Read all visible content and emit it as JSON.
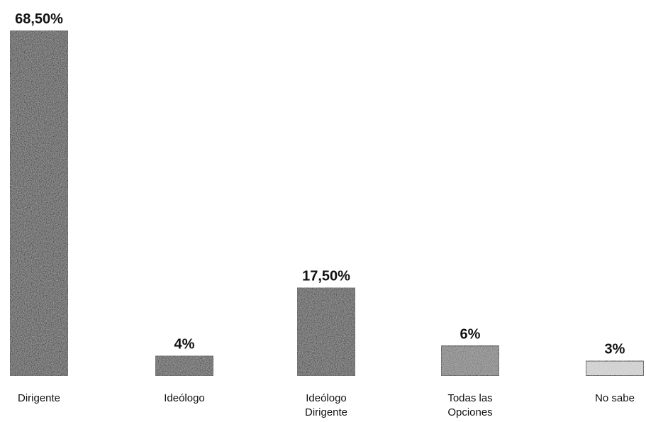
{
  "chart_data": {
    "type": "bar",
    "categories": [
      "Dirigente",
      "Ideólogo",
      "Ideólogo\nDirigente",
      "Todas las\nOpciones",
      "No sabe"
    ],
    "values": [
      68.5,
      4,
      17.5,
      6,
      3
    ],
    "value_labels": [
      "68,50%",
      "4%",
      "17,50%",
      "6%",
      "3%"
    ],
    "colors": [
      "#2e2e2e",
      "#3a3a3a",
      "#333333",
      "#707070",
      "#c8c8c8"
    ]
  }
}
